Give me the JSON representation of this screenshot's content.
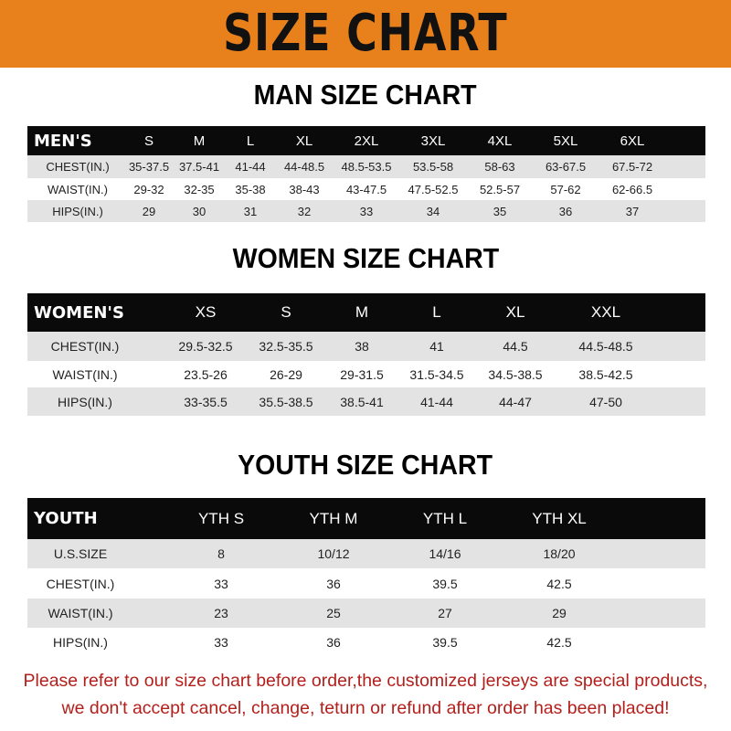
{
  "banner_title": "SIZE CHART",
  "colors": {
    "banner": "#e8801c",
    "header_row": "#0a0a0a",
    "stripe": "#e3e3e3",
    "note": "#b3201c"
  },
  "men": {
    "title": "MAN SIZE CHART",
    "header": [
      "MEN'S",
      "S",
      "M",
      "L",
      "XL",
      "2XL",
      "3XL",
      "4XL",
      "5XL",
      "6XL"
    ],
    "rows": [
      [
        "CHEST(IN.)",
        "35-37.5",
        "37.5-41",
        "41-44",
        "44-48.5",
        "48.5-53.5",
        "53.5-58",
        "58-63",
        "63-67.5",
        "67.5-72"
      ],
      [
        "WAIST(IN.)",
        "29-32",
        "32-35",
        "35-38",
        "38-43",
        "43-47.5",
        "47.5-52.5",
        "52.5-57",
        "57-62",
        "62-66.5"
      ],
      [
        "HIPS(IN.)",
        "29",
        "30",
        "31",
        "32",
        "33",
        "34",
        "35",
        "36",
        "37"
      ]
    ]
  },
  "women": {
    "title": "WOMEN SIZE CHART",
    "header": [
      "WOMEN'S",
      "XS",
      "S",
      "M",
      "L",
      "XL",
      "XXL"
    ],
    "rows": [
      [
        "CHEST(IN.)",
        "29.5-32.5",
        "32.5-35.5",
        "38",
        "41",
        "44.5",
        "44.5-48.5"
      ],
      [
        "WAIST(IN.)",
        "23.5-26",
        "26-29",
        "29-31.5",
        "31.5-34.5",
        "34.5-38.5",
        "38.5-42.5"
      ],
      [
        "HIPS(IN.)",
        "33-35.5",
        "35.5-38.5",
        "38.5-41",
        "41-44",
        "44-47",
        "47-50"
      ]
    ]
  },
  "youth": {
    "title": "YOUTH SIZE CHART",
    "header": [
      "YOUTH",
      "YTH S",
      "YTH M",
      "YTH L",
      "YTH XL"
    ],
    "rows": [
      [
        "U.S.SIZE",
        "8",
        "10/12",
        "14/16",
        "18/20"
      ],
      [
        "CHEST(IN.)",
        "33",
        "36",
        "39.5",
        "42.5"
      ],
      [
        "WAIST(IN.)",
        "23",
        "25",
        "27",
        "29"
      ],
      [
        "HIPS(IN.)",
        "33",
        "36",
        "39.5",
        "42.5"
      ]
    ]
  },
  "notice": {
    "line1": "Please refer to our size chart before order,the customized jerseys are special products,",
    "line2": "we don't accept cancel, change, teturn or refund after order has been placed!"
  }
}
